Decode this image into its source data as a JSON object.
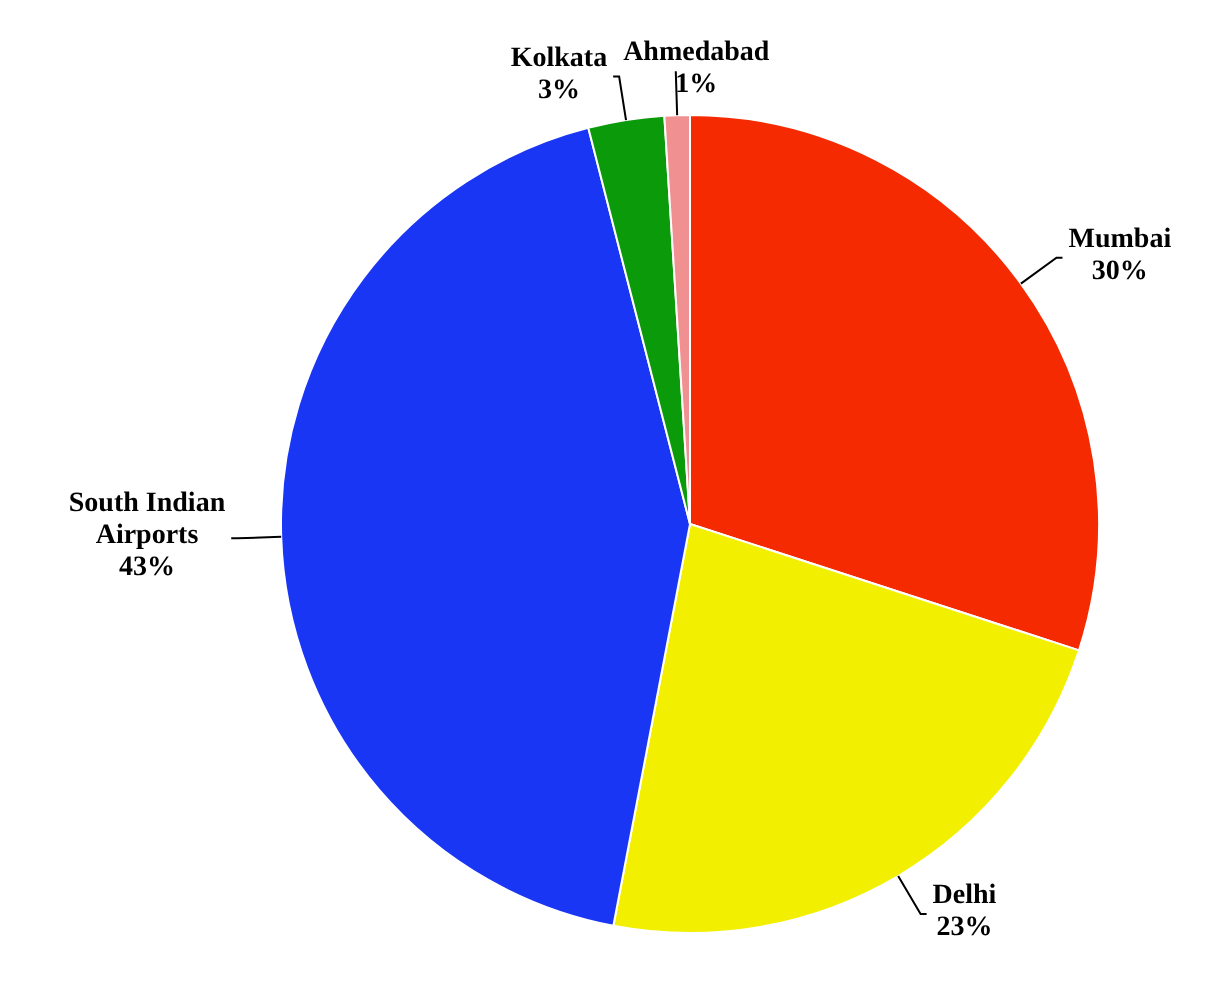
{
  "chart_data": {
    "type": "pie",
    "categories": [
      "Mumbai",
      "Delhi",
      "South Indian Airports",
      "Kolkata",
      "Ahmedabad"
    ],
    "values": [
      30,
      23,
      43,
      3,
      1
    ],
    "value_labels": [
      "30%",
      "23%",
      "43%",
      "3%",
      "1%"
    ],
    "colors": [
      "#f52a00",
      "#f2f000",
      "#1a36f5",
      "#0a9a0a",
      "#f09090"
    ],
    "legend": false
  }
}
